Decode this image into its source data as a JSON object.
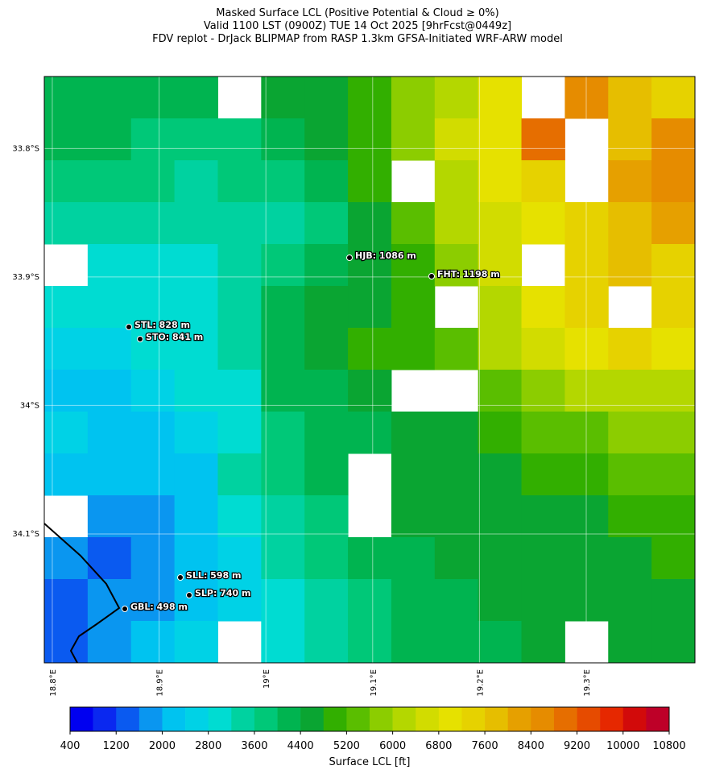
{
  "chart_data": {
    "type": "heatmap",
    "title": [
      "Masked Surface LCL (Positive Potential & Cloud ≥ 0%)",
      "Valid 1100 LST (0900Z) TUE 14 Oct 2025 [9hrFcst@0449z]",
      "FDV replot - DrJack BLIPMAP from RASP 1.3km GFSA-Initiated WRF-ARW model"
    ],
    "xlim": [
      18.7925,
      19.4018
    ],
    "ylim": [
      -33.744,
      -34.2003
    ],
    "xticks": [
      {
        "value": 18.8,
        "label": "18.8°E"
      },
      {
        "value": 18.9,
        "label": "18.9°E"
      },
      {
        "value": 19.0,
        "label": "19°E"
      },
      {
        "value": 19.1,
        "label": "19.1°E"
      },
      {
        "value": 19.2,
        "label": "19.2°E"
      },
      {
        "value": 19.3,
        "label": "19.3°E"
      }
    ],
    "yticks": [
      {
        "value": -33.8,
        "label": "33.8°S"
      },
      {
        "value": -33.9,
        "label": "33.9°S"
      },
      {
        "value": -34.0,
        "label": "34°S"
      },
      {
        "value": -34.1,
        "label": "34.1°S"
      }
    ],
    "grid": true,
    "values": [
      [
        4000,
        4200,
        4200,
        4000,
        null,
        4400,
        4600,
        4800,
        5600,
        6400,
        6800,
        null,
        8600,
        7600,
        7200
      ],
      [
        4000,
        4000,
        3800,
        3800,
        3800,
        4200,
        4400,
        4800,
        5800,
        6600,
        7000,
        8800,
        null,
        7600,
        8400
      ],
      [
        3800,
        3800,
        3600,
        3400,
        3600,
        3800,
        4200,
        4800,
        null,
        6400,
        6800,
        7200,
        null,
        8000,
        8400
      ],
      [
        3400,
        3400,
        3200,
        3400,
        3400,
        3200,
        3600,
        4400,
        5200,
        6000,
        6600,
        7000,
        7200,
        7800,
        8000
      ],
      [
        null,
        3000,
        2800,
        3000,
        3400,
        3600,
        4000,
        4400,
        4800,
        5600,
        6600,
        null,
        7400,
        7600,
        7400
      ],
      [
        2800,
        2800,
        2800,
        2800,
        3400,
        4200,
        4400,
        4600,
        5000,
        null,
        6400,
        7000,
        7200,
        null,
        7200
      ],
      [
        2400,
        2600,
        2800,
        3000,
        3200,
        4200,
        4600,
        4800,
        5000,
        5200,
        6200,
        6600,
        7000,
        7200,
        7000
      ],
      [
        2200,
        2000,
        2400,
        2800,
        3000,
        4000,
        4200,
        4400,
        null,
        null,
        5200,
        5600,
        6000,
        6000,
        6000
      ],
      [
        2400,
        2200,
        2000,
        2400,
        3000,
        3800,
        4000,
        4200,
        4400,
        4400,
        4800,
        5200,
        5400,
        5600,
        5800
      ],
      [
        2000,
        2200,
        2000,
        2200,
        3200,
        3600,
        4000,
        null,
        4400,
        4400,
        4600,
        4800,
        5000,
        5200,
        5400
      ],
      [
        null,
        1600,
        1800,
        2200,
        2800,
        3400,
        3800,
        null,
        4400,
        4400,
        4400,
        4600,
        4600,
        4800,
        5000
      ],
      [
        1600,
        1400,
        1600,
        2000,
        2600,
        3200,
        3600,
        4000,
        4200,
        4400,
        4400,
        4400,
        4600,
        4600,
        4800
      ],
      [
        1200,
        1600,
        1800,
        2200,
        2600,
        3000,
        3400,
        3800,
        4000,
        4200,
        4400,
        4400,
        4400,
        4600,
        4600
      ],
      [
        1400,
        1800,
        2200,
        2600,
        null,
        3000,
        3400,
        3800,
        4000,
        4200,
        4200,
        4400,
        null,
        4600,
        4400
      ]
    ],
    "stations": [
      "HJB: 1086 m",
      "FHT: 1198 m",
      "STL: 828 m",
      "STO: 841 m",
      "SLL: 598 m",
      "SLP: 740 m",
      "GBL: 498 m"
    ],
    "colorbar": {
      "label": "Surface LCL [ft]",
      "lim": [
        400,
        10800
      ],
      "ticks": [
        400,
        1200,
        2000,
        2800,
        3600,
        4400,
        5200,
        6000,
        6800,
        7600,
        8400,
        9200,
        10000,
        10800
      ],
      "colors": [
        "#0000f0",
        "#0a28f0",
        "#0a5af0",
        "#0a96f0",
        "#00c3f0",
        "#00d2e6",
        "#00dcd2",
        "#00d2a0",
        "#00c878",
        "#00b450",
        "#0aa532",
        "#32af00",
        "#5abe00",
        "#8ccd00",
        "#b4d700",
        "#d2dc00",
        "#e6e100",
        "#e6d200",
        "#e6be00",
        "#e6a000",
        "#e68c00",
        "#e66e00",
        "#e64b00",
        "#e62800",
        "#d20a0a",
        "#be0028"
      ]
    }
  }
}
